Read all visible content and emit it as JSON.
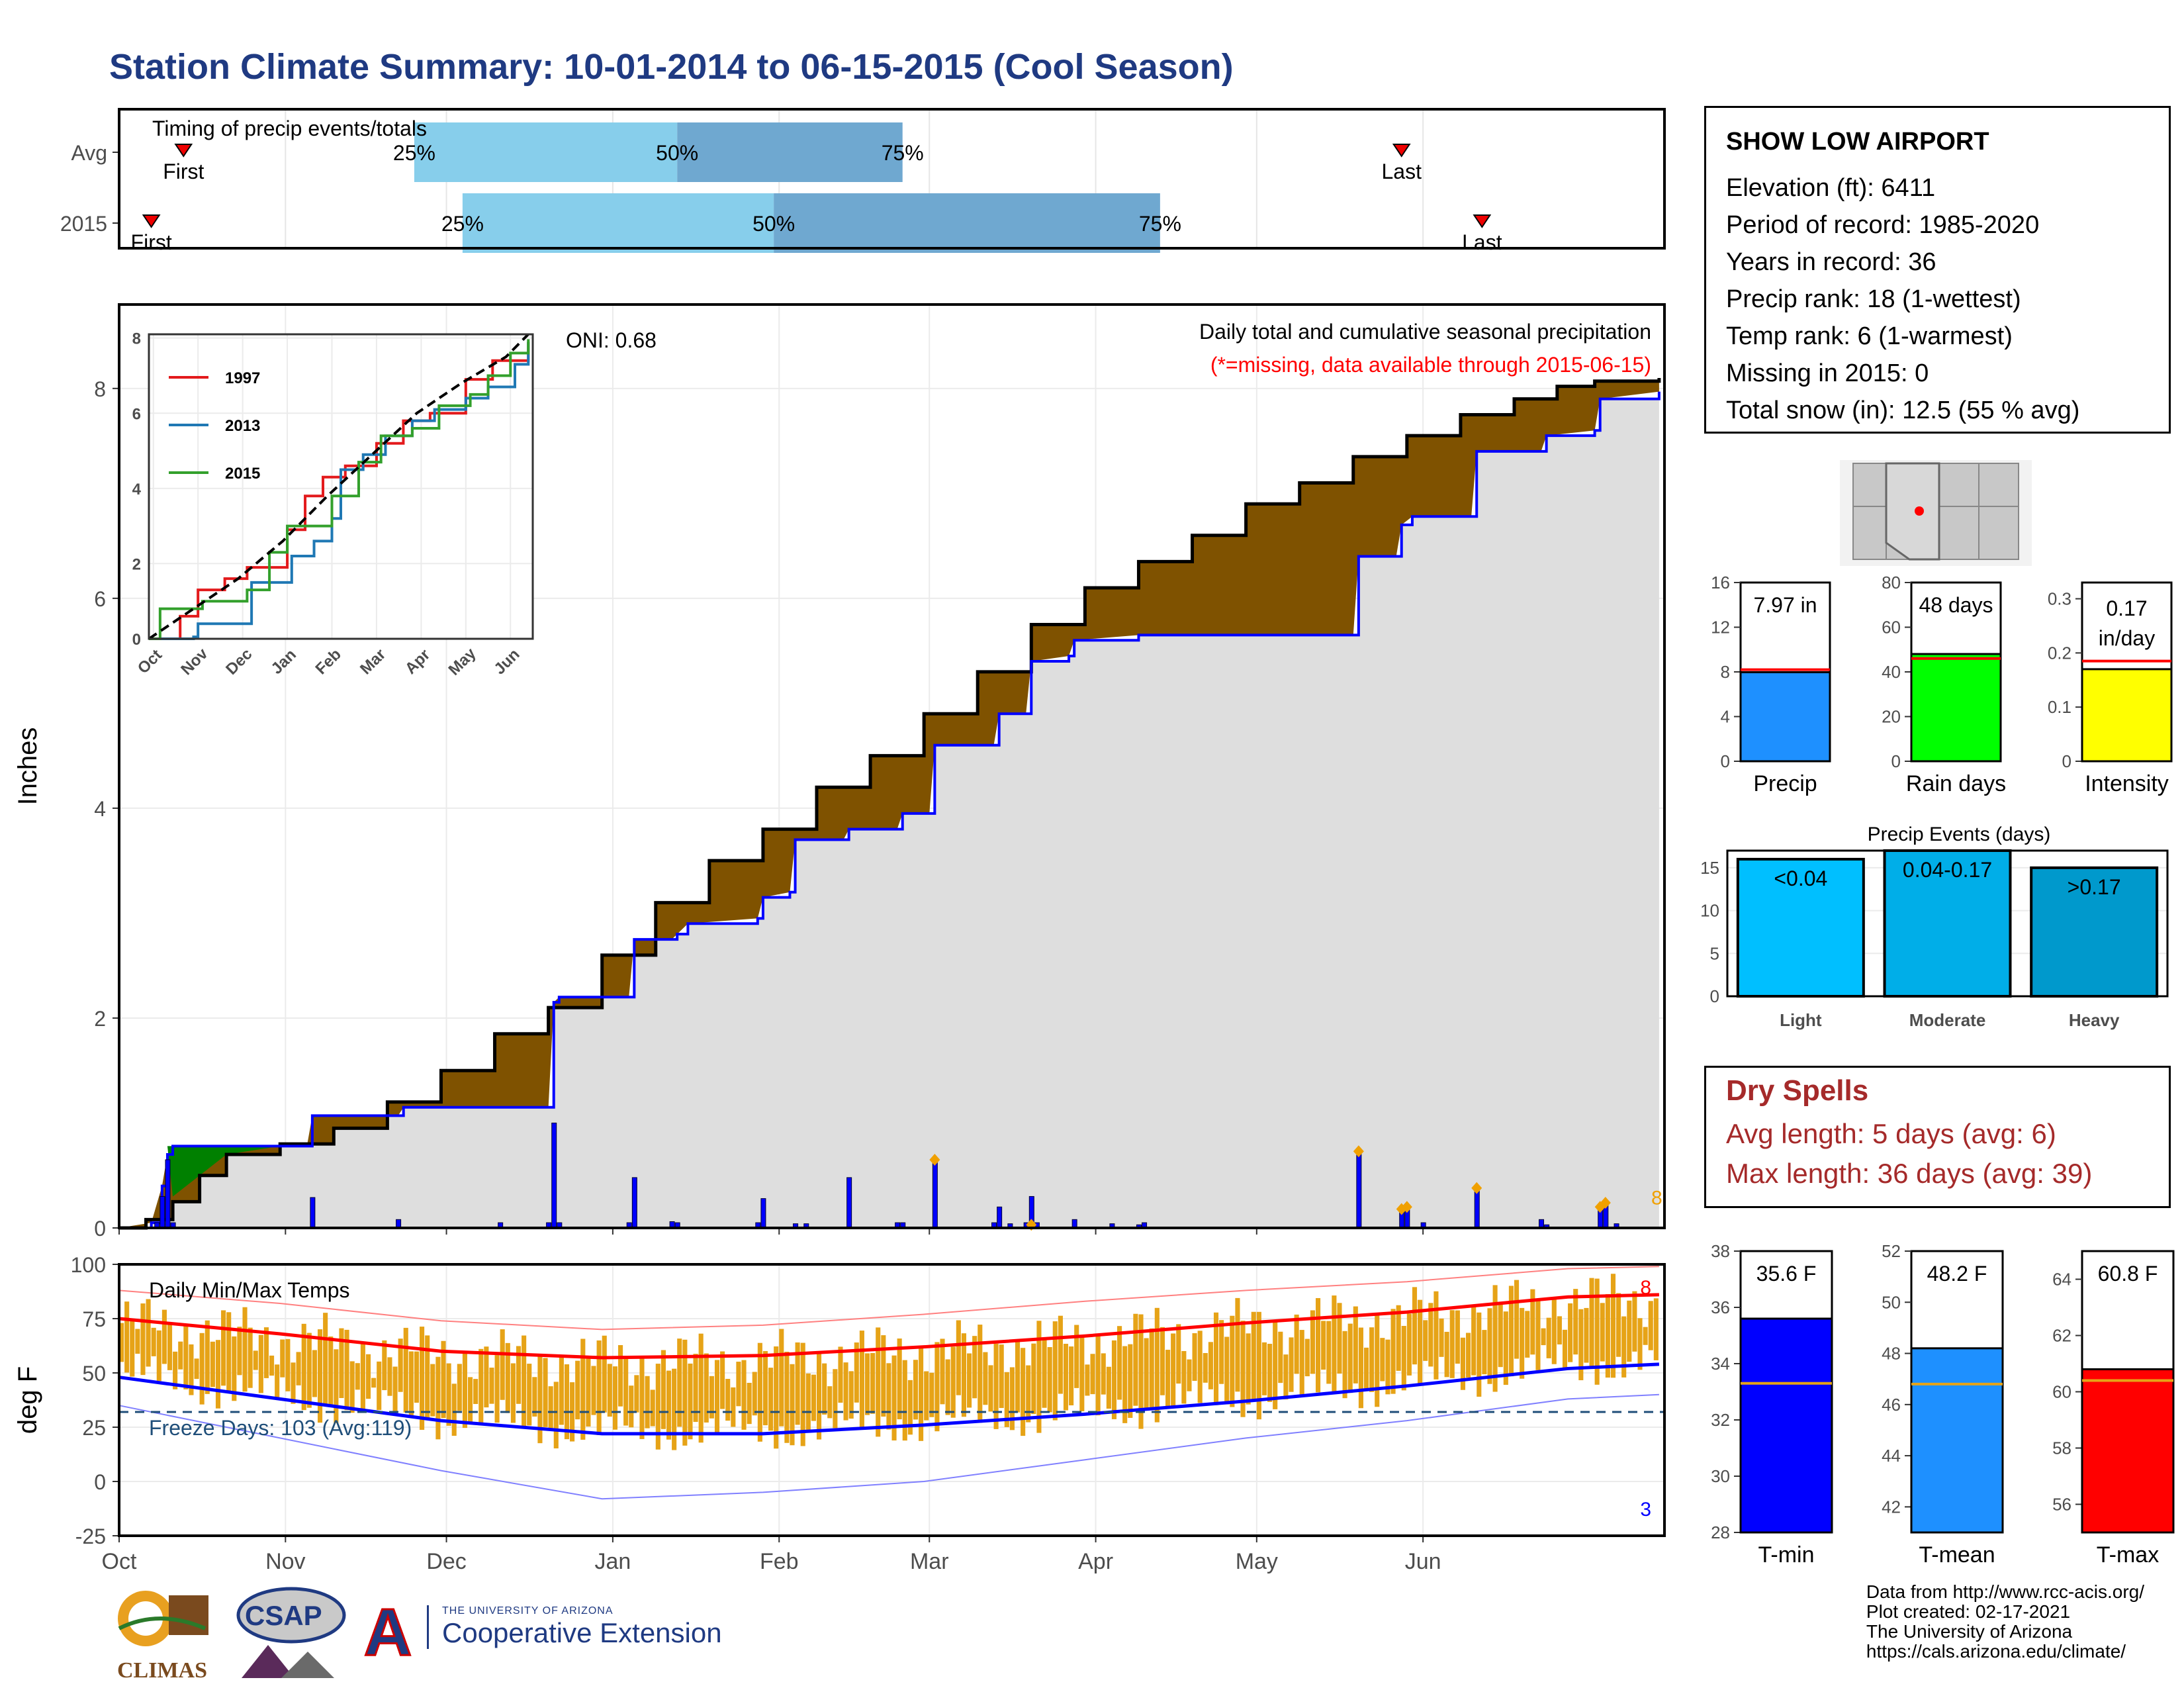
{
  "title": "Station Climate Summary: 10-01-2014 to 06-15-2015 (Cool Season)",
  "station": {
    "name": "SHOW LOW AIRPORT",
    "lines": [
      "Elevation (ft): 6411",
      "Period of record: 1985-2020",
      "Years in record: 36",
      "Precip rank: 18 (1-wettest)",
      "Temp rank: 6 (1-warmest)",
      "Missing in 2015: 0",
      "Total snow (in): 12.5 (55 % avg)"
    ]
  },
  "dry_spells": {
    "title": "Dry Spells",
    "avg": "Avg length: 5 days (avg: 6)",
    "max": "Max length: 36 days (avg: 39)"
  },
  "footer": [
    "Data from http://www.rcc-acis.org/",
    "Plot created: 02-17-2021",
    "The University of Arizona",
    "https://cals.arizona.edu/climate/"
  ],
  "logos": {
    "climas": "CLIMAS",
    "csap": "CSAP",
    "ua_small": "THE UNIVERSITY OF ARIZONA",
    "ua_large": "Cooperative Extension"
  },
  "month_labels": [
    "Oct",
    "Nov",
    "Dec",
    "Jan",
    "Feb",
    "Mar",
    "Apr",
    "May",
    "Jun"
  ],
  "colors": {
    "brown": "#7f5200",
    "blue": "#0000ff",
    "light_blue": "#87ceeb",
    "mid_blue": "#6fa8d0",
    "orange": "#e6a317",
    "red": "#ff0000",
    "gray": "#dedede",
    "green": "#008000"
  },
  "chart_data": [
    {
      "id": "timing",
      "type": "bar",
      "title": "Timing of precip events/totals",
      "rows": [
        {
          "label": "Avg",
          "first": "Oct 13",
          "p25": "Nov 25",
          "p50": "Jan 13",
          "p75": "Feb 24",
          "last": "May 28"
        },
        {
          "label": "2015",
          "first": "Oct 7",
          "p25": "Dec 4",
          "p50": "Jan 31",
          "p75": "Apr 13",
          "last": "Jun 12"
        }
      ],
      "marker_labels": {
        "first": "First",
        "last": "Last",
        "p25": "25%",
        "p50": "50%",
        "p75": "75%"
      }
    },
    {
      "id": "precip",
      "type": "area",
      "title": "Daily total and cumulative seasonal precipitation",
      "subtitle": "(*=missing, data available through 2015-06-15)",
      "ylabel": "Inches",
      "ylim": [
        0,
        8.8
      ],
      "yticks": [
        0,
        2,
        4,
        6,
        8
      ],
      "oni": "ONI: 0.68",
      "count_label": "8",
      "series": [
        {
          "name": "Avg cumulative",
          "points": [
            [
              0,
              0
            ],
            [
              5,
              0.08
            ],
            [
              10,
              0.25
            ],
            [
              15,
              0.5
            ],
            [
              20,
              0.7
            ],
            [
              30,
              0.8
            ],
            [
              40,
              0.95
            ],
            [
              50,
              1.2
            ],
            [
              60,
              1.5
            ],
            [
              70,
              1.85
            ],
            [
              80,
              2.1
            ],
            [
              90,
              2.6
            ],
            [
              100,
              3.1
            ],
            [
              110,
              3.5
            ],
            [
              120,
              3.8
            ],
            [
              130,
              4.2
            ],
            [
              140,
              4.5
            ],
            [
              150,
              4.9
            ],
            [
              160,
              5.3
            ],
            [
              170,
              5.75
            ],
            [
              180,
              6.1
            ],
            [
              190,
              6.35
            ],
            [
              200,
              6.6
            ],
            [
              210,
              6.9
            ],
            [
              220,
              7.1
            ],
            [
              230,
              7.35
            ],
            [
              240,
              7.55
            ],
            [
              250,
              7.75
            ],
            [
              260,
              7.9
            ],
            [
              268,
              8.02
            ],
            [
              275,
              8.07
            ],
            [
              287,
              8.1
            ]
          ]
        },
        {
          "name": "2015 cumulative",
          "points": [
            [
              0,
              0
            ],
            [
              6,
              0.05
            ],
            [
              8,
              0.4
            ],
            [
              9,
              0.7
            ],
            [
              10,
              0.78
            ],
            [
              35,
              0.78
            ],
            [
              36,
              1.07
            ],
            [
              52,
              1.07
            ],
            [
              53,
              1.15
            ],
            [
              70,
              1.15
            ],
            [
              71,
              1.15
            ],
            [
              80,
              1.15
            ],
            [
              81,
              2.15
            ],
            [
              82,
              2.2
            ],
            [
              95,
              2.2
            ],
            [
              96,
              2.75
            ],
            [
              103,
              2.75
            ],
            [
              104,
              2.8
            ],
            [
              106,
              2.9
            ],
            [
              119,
              2.95
            ],
            [
              120,
              3.15
            ],
            [
              125,
              3.2
            ],
            [
              126,
              3.7
            ],
            [
              135,
              3.7
            ],
            [
              136,
              3.8
            ],
            [
              145,
              3.8
            ],
            [
              146,
              3.95
            ],
            [
              151,
              3.95
            ],
            [
              152,
              4.6
            ],
            [
              163,
              4.6
            ],
            [
              164,
              4.9
            ],
            [
              169,
              4.9
            ],
            [
              170,
              5.4
            ],
            [
              177,
              5.45
            ],
            [
              178,
              5.6
            ],
            [
              190,
              5.65
            ],
            [
              200,
              5.65
            ],
            [
              210,
              5.65
            ],
            [
              220,
              5.65
            ],
            [
              230,
              5.65
            ],
            [
              231,
              6.4
            ],
            [
              238,
              6.4
            ],
            [
              239,
              6.7
            ],
            [
              241,
              6.78
            ],
            [
              252,
              6.78
            ],
            [
              253,
              7.4
            ],
            [
              265,
              7.4
            ],
            [
              266,
              7.55
            ],
            [
              275,
              7.6
            ],
            [
              276,
              7.9
            ],
            [
              287,
              7.97
            ]
          ]
        }
      ],
      "daily_values": [
        [
          7,
          0.05
        ],
        [
          8,
          0.3
        ],
        [
          9,
          0.65
        ],
        [
          10,
          0.05
        ],
        [
          36,
          0.29
        ],
        [
          52,
          0.08
        ],
        [
          71,
          0.05
        ],
        [
          80,
          0.05
        ],
        [
          81,
          1.0
        ],
        [
          82,
          0.05
        ],
        [
          95,
          0.05
        ],
        [
          96,
          0.48
        ],
        [
          103,
          0.06
        ],
        [
          104,
          0.05
        ],
        [
          119,
          0.05
        ],
        [
          120,
          0.28
        ],
        [
          126,
          0.04
        ],
        [
          128,
          0.04
        ],
        [
          136,
          0.48
        ],
        [
          145,
          0.05
        ],
        [
          146,
          0.05
        ],
        [
          152,
          0.65
        ],
        [
          163,
          0.05
        ],
        [
          164,
          0.2
        ],
        [
          166,
          0.04
        ],
        [
          169,
          0.05
        ],
        [
          170,
          0.3
        ],
        [
          171,
          0.05
        ],
        [
          178,
          0.08
        ],
        [
          185,
          0.04
        ],
        [
          190,
          0.03
        ],
        [
          191,
          0.05
        ],
        [
          231,
          0.73
        ],
        [
          239,
          0.18
        ],
        [
          240,
          0.2
        ],
        [
          243,
          0.05
        ],
        [
          253,
          0.38
        ],
        [
          265,
          0.08
        ],
        [
          266,
          0.03
        ],
        [
          276,
          0.2
        ],
        [
          277,
          0.24
        ],
        [
          279,
          0.04
        ]
      ]
    },
    {
      "id": "inset",
      "type": "line",
      "xlabels": [
        "Oct",
        "Nov",
        "Dec",
        "Jan",
        "Feb",
        "Mar",
        "Apr",
        "May",
        "Jun"
      ],
      "ylim": [
        0,
        8
      ],
      "yticks": [
        0,
        2,
        4,
        6,
        8
      ],
      "series": [
        {
          "name": "1997",
          "color": "#e31a1c",
          "points": [
            [
              0,
              0
            ],
            [
              0.7,
              0.6
            ],
            [
              1.1,
              1.3
            ],
            [
              1.7,
              1.6
            ],
            [
              2.2,
              1.9
            ],
            [
              2.6,
              1.9
            ],
            [
              3.1,
              2.9
            ],
            [
              3.5,
              3.8
            ],
            [
              3.9,
              4.3
            ],
            [
              4.4,
              4.6
            ],
            [
              5.1,
              5.2
            ],
            [
              5.7,
              5.8
            ],
            [
              6.3,
              6.0
            ],
            [
              7.1,
              6.9
            ],
            [
              7.7,
              7.4
            ],
            [
              8.5,
              7.9
            ]
          ]
        },
        {
          "name": "2013",
          "color": "#1f78b4",
          "points": [
            [
              0,
              0
            ],
            [
              1,
              0.05
            ],
            [
              1.1,
              0.4
            ],
            [
              2.3,
              1.5
            ],
            [
              3.2,
              2.2
            ],
            [
              3.7,
              2.6
            ],
            [
              4.1,
              3.2
            ],
            [
              4.3,
              4.5
            ],
            [
              4.8,
              4.9
            ],
            [
              5.3,
              5.4
            ],
            [
              5.9,
              5.8
            ],
            [
              6.4,
              6.1
            ],
            [
              7.1,
              6.4
            ],
            [
              7.6,
              6.7
            ],
            [
              8.2,
              7.3
            ],
            [
              8.5,
              7.9
            ]
          ]
        },
        {
          "name": "2015",
          "color": "#33a02c",
          "points": [
            [
              0,
              0
            ],
            [
              0.25,
              0.8
            ],
            [
              1.2,
              1.0
            ],
            [
              2.2,
              1.3
            ],
            [
              2.7,
              2.3
            ],
            [
              3.1,
              3.0
            ],
            [
              4.1,
              3.8
            ],
            [
              4.7,
              4.7
            ],
            [
              5.2,
              5.4
            ],
            [
              5.9,
              5.6
            ],
            [
              6.5,
              6.2
            ],
            [
              7.2,
              6.5
            ],
            [
              7.6,
              7.0
            ],
            [
              8.1,
              7.6
            ],
            [
              8.5,
              7.97
            ]
          ]
        },
        {
          "name": "Avg",
          "color": "#000000",
          "points": [
            [
              0,
              0
            ],
            [
              1,
              0.8
            ],
            [
              2,
              1.6
            ],
            [
              3,
              2.6
            ],
            [
              4,
              3.8
            ],
            [
              5,
              4.9
            ],
            [
              6,
              6.0
            ],
            [
              7,
              6.8
            ],
            [
              8,
              7.5
            ],
            [
              8.5,
              8.1
            ]
          ]
        }
      ]
    },
    {
      "id": "temps",
      "type": "bar",
      "title": "Daily Min/Max Temps",
      "ylabel": "deg F",
      "ylim": [
        -25,
        100
      ],
      "yticks": [
        -25,
        0,
        25,
        50,
        75,
        100
      ],
      "freeze_label": "Freeze Days: 103 (Avg:119)",
      "freeze_line": 32,
      "count_high": "8",
      "count_low": "3",
      "avg_max": [
        [
          0,
          75
        ],
        [
          30,
          68
        ],
        [
          60,
          60
        ],
        [
          90,
          57
        ],
        [
          120,
          58
        ],
        [
          150,
          62
        ],
        [
          180,
          67
        ],
        [
          210,
          73
        ],
        [
          240,
          78
        ],
        [
          270,
          85
        ],
        [
          287,
          86
        ]
      ],
      "avg_min": [
        [
          0,
          48
        ],
        [
          30,
          38
        ],
        [
          60,
          28
        ],
        [
          90,
          22
        ],
        [
          120,
          22
        ],
        [
          150,
          26
        ],
        [
          180,
          31
        ],
        [
          210,
          37
        ],
        [
          240,
          44
        ],
        [
          270,
          52
        ],
        [
          287,
          54
        ]
      ],
      "rec_max": [
        [
          0,
          88
        ],
        [
          30,
          82
        ],
        [
          60,
          74
        ],
        [
          90,
          70
        ],
        [
          120,
          72
        ],
        [
          150,
          77
        ],
        [
          180,
          83
        ],
        [
          210,
          88
        ],
        [
          240,
          92
        ],
        [
          270,
          98
        ],
        [
          287,
          99
        ]
      ],
      "rec_min": [
        [
          0,
          35
        ],
        [
          30,
          20
        ],
        [
          60,
          5
        ],
        [
          90,
          -8
        ],
        [
          120,
          -5
        ],
        [
          150,
          0
        ],
        [
          180,
          10
        ],
        [
          210,
          20
        ],
        [
          240,
          28
        ],
        [
          270,
          38
        ],
        [
          287,
          40
        ]
      ]
    },
    {
      "id": "summary_bars",
      "type": "bar",
      "panels": [
        {
          "label": "Precip",
          "value_label": "7.97 in",
          "value": 7.97,
          "avg": 8.2,
          "ymax": 16,
          "yticks": [
            0,
            4,
            8,
            12,
            16
          ],
          "color": "#1e90ff"
        },
        {
          "label": "Rain days",
          "value_label": "48 days",
          "value": 48,
          "avg": 46,
          "ymax": 80,
          "yticks": [
            0,
            20,
            40,
            60,
            80
          ],
          "color": "#00ff00"
        },
        {
          "label": "Intensity",
          "value_label": "0.17 in/day",
          "value": 0.17,
          "avg": 0.185,
          "ymax": 0.33,
          "yticks": [
            0.0,
            0.1,
            0.2,
            0.3
          ],
          "color": "#ffff00"
        }
      ]
    },
    {
      "id": "precip_events",
      "type": "bar",
      "title": "Precip Events (days)",
      "categories": [
        "Light",
        "Moderate",
        "Heavy"
      ],
      "bar_labels": [
        "<0.04",
        "0.04-0.17",
        ">0.17"
      ],
      "values": [
        16,
        17,
        15
      ],
      "colors": [
        "#00bfff",
        "#00aee8",
        "#0099cc"
      ],
      "ylim": [
        0,
        17
      ],
      "yticks": [
        0,
        5,
        10,
        15
      ]
    },
    {
      "id": "temp_bars",
      "type": "bar",
      "panels": [
        {
          "label": "T-min",
          "value_label": "35.6 F",
          "value": 35.6,
          "avg": 33.3,
          "ylim": [
            28,
            38
          ],
          "yticks": [
            28,
            30,
            32,
            34,
            36,
            38
          ],
          "color": "#0000ff"
        },
        {
          "label": "T-mean",
          "value_label": "48.2 F",
          "value": 48.2,
          "avg": 46.8,
          "ylim": [
            41,
            52
          ],
          "yticks": [
            42,
            44,
            46,
            48,
            50,
            52
          ],
          "color": "#1e90ff"
        },
        {
          "label": "T-max",
          "value_label": "60.8 F",
          "value": 60.8,
          "avg": 60.4,
          "ylim": [
            55,
            65
          ],
          "yticks": [
            56,
            58,
            60,
            62,
            64
          ],
          "color": "#ff0000"
        }
      ]
    }
  ]
}
